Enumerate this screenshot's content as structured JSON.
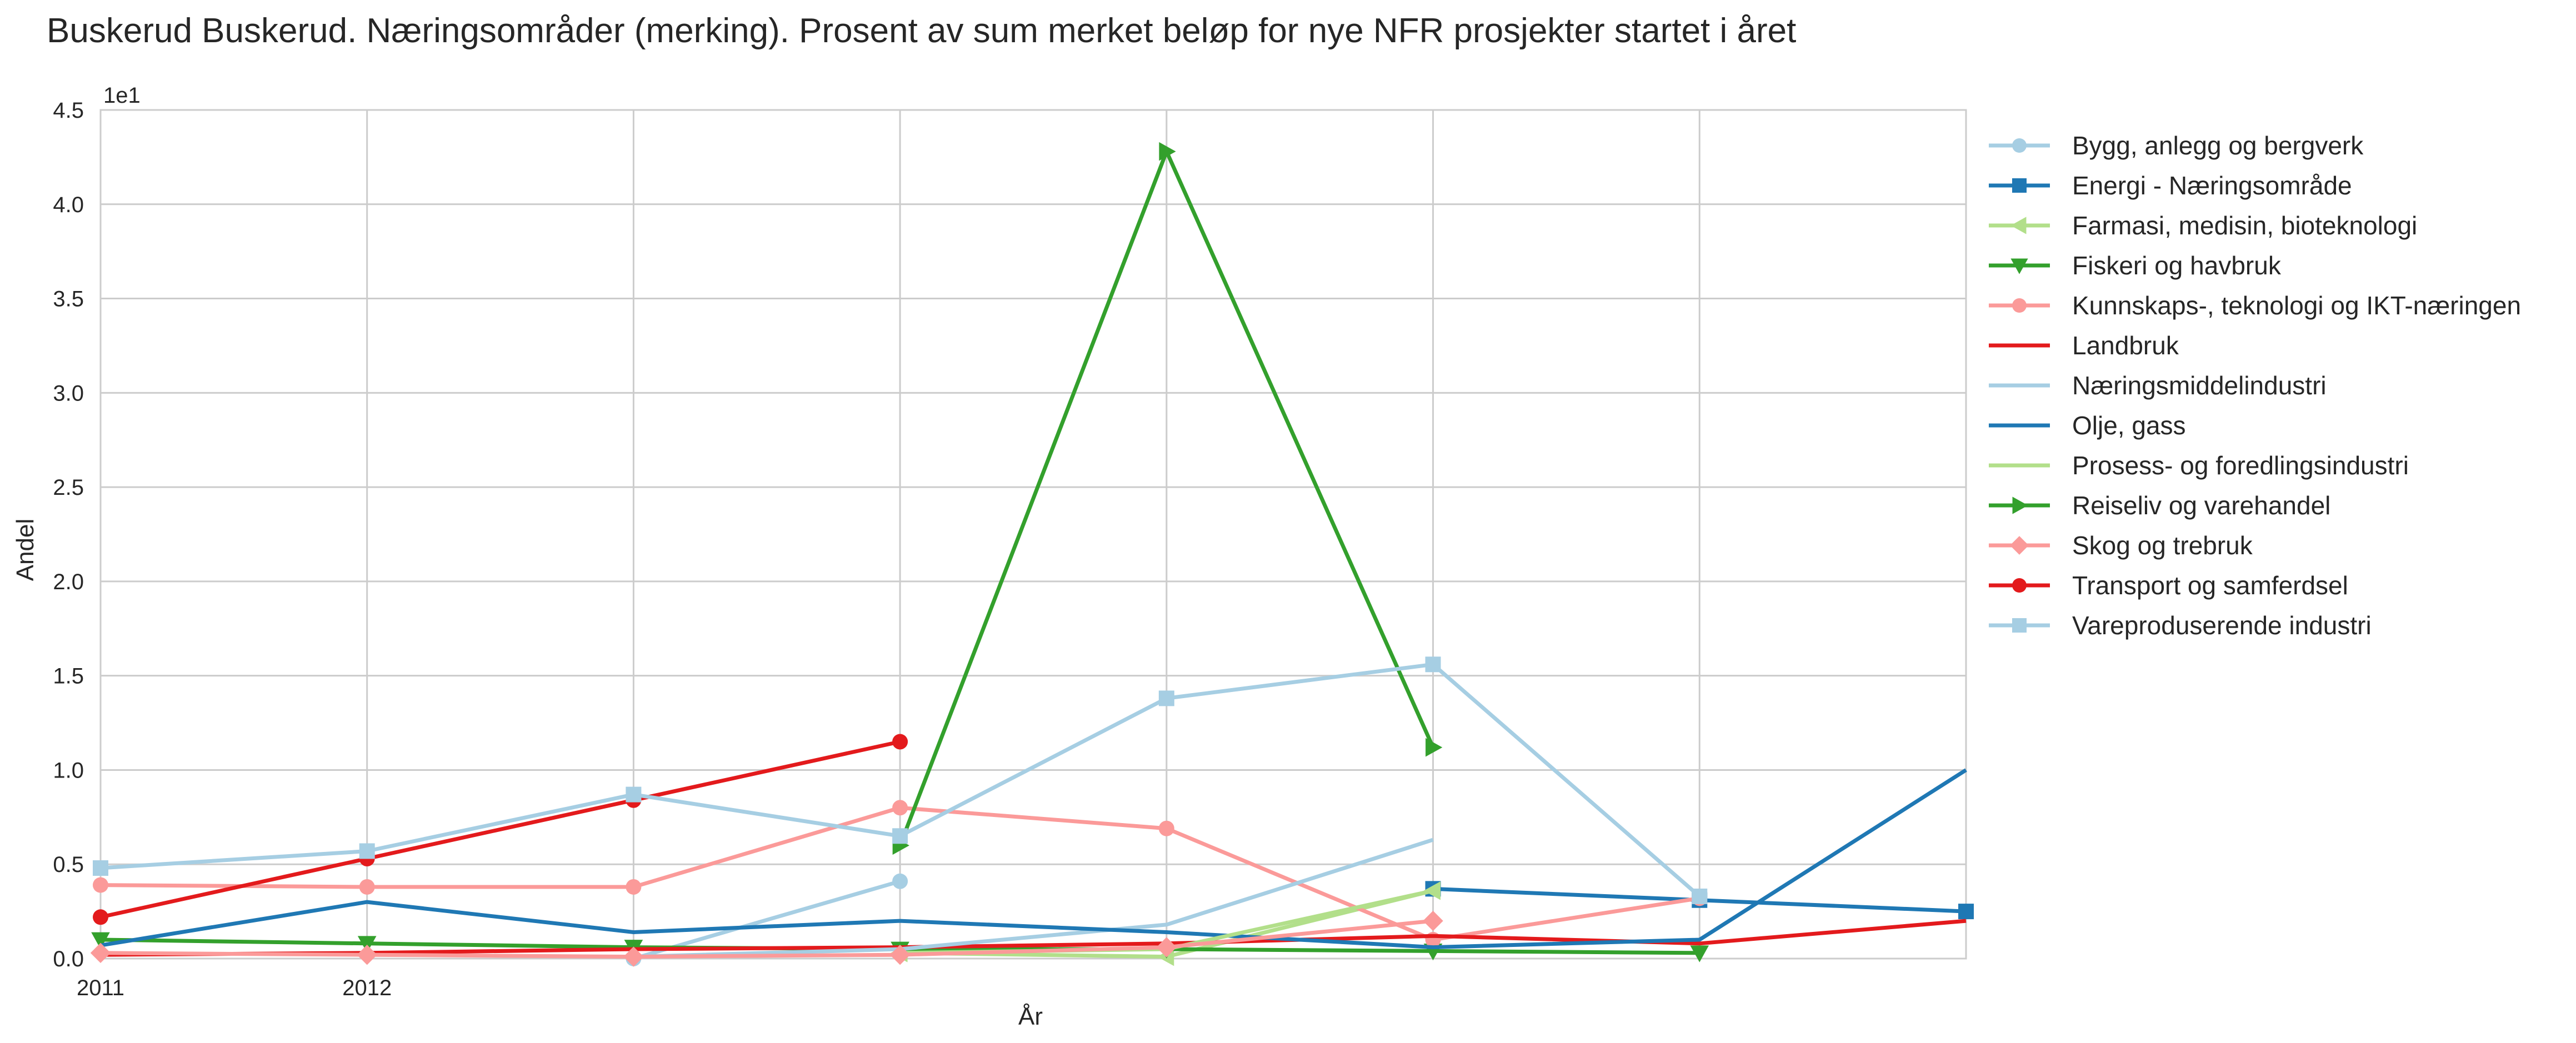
{
  "chart_data": {
    "type": "line",
    "title": "Buskerud Buskerud. Næringsområder (merking). Prosent av sum merket beløp for nye NFR prosjekter startet i året",
    "xlabel": "År",
    "ylabel": "Andel",
    "y_scale_label": "1e1",
    "xlim": [
      2011,
      2018
    ],
    "ylim": [
      0,
      4.5
    ],
    "x_tick_labels": [
      "2011",
      "2012"
    ],
    "y_ticks": [
      "0.0",
      "0.5",
      "1.0",
      "1.5",
      "2.0",
      "2.5",
      "3.0",
      "3.5",
      "4.0",
      "4.5"
    ],
    "grid": true,
    "legend_position": "right, outside plot",
    "series": [
      {
        "name": "Bygg, anlegg og bergverk",
        "color": "#a6cee3",
        "marker": "circle",
        "points": [
          [
            2013,
            0.0
          ],
          [
            2014,
            0.41
          ]
        ]
      },
      {
        "name": "Energi - Næringsområde",
        "color": "#1f78b4",
        "marker": "square",
        "points": [
          [
            2016,
            0.37
          ],
          [
            2017,
            0.31
          ],
          [
            2018,
            0.25
          ]
        ]
      },
      {
        "name": "Farmasi, medisin, bioteknologi",
        "color": "#b2df8a",
        "marker": "triangle-left",
        "points": [
          [
            2014,
            0.03
          ],
          [
            2015,
            0.01
          ],
          [
            2016,
            0.36
          ]
        ]
      },
      {
        "name": "Fiskeri og havbruk",
        "color": "#33a02c",
        "marker": "triangle-down",
        "points": [
          [
            2011,
            0.1
          ],
          [
            2012,
            0.08
          ],
          [
            2013,
            0.06
          ],
          [
            2014,
            0.05
          ],
          [
            2015,
            0.05
          ],
          [
            2016,
            0.04
          ],
          [
            2017,
            0.03
          ]
        ]
      },
      {
        "name": "Kunnskaps-, teknologi og IKT-næringen",
        "color": "#fb9a99",
        "marker": "circle",
        "points": [
          [
            2011,
            0.39
          ],
          [
            2012,
            0.38
          ],
          [
            2013,
            0.38
          ],
          [
            2014,
            0.8
          ],
          [
            2015,
            0.69
          ],
          [
            2016,
            0.1
          ],
          [
            2017,
            0.32
          ]
        ]
      },
      {
        "name": "Landbruk",
        "color": "#e31a1c",
        "marker": "none",
        "points": [
          [
            2011,
            0.02
          ],
          [
            2012,
            0.03
          ],
          [
            2013,
            0.05
          ],
          [
            2014,
            0.06
          ],
          [
            2015,
            0.08
          ],
          [
            2016,
            0.12
          ],
          [
            2017,
            0.08
          ],
          [
            2018,
            0.2
          ]
        ]
      },
      {
        "name": "Næringsmiddelindustri",
        "color": "#a6cee3",
        "marker": "none",
        "points": [
          [
            2013,
            0.01
          ],
          [
            2014,
            0.05
          ],
          [
            2015,
            0.18
          ],
          [
            2016,
            0.63
          ]
        ]
      },
      {
        "name": "Olje, gass",
        "color": "#1f78b4",
        "marker": "none",
        "points": [
          [
            2011,
            0.07
          ],
          [
            2012,
            0.3
          ],
          [
            2013,
            0.14
          ],
          [
            2014,
            0.2
          ],
          [
            2015,
            0.14
          ],
          [
            2016,
            0.06
          ],
          [
            2017,
            0.1
          ],
          [
            2018,
            1.0
          ]
        ]
      },
      {
        "name": "Prosess- og foredlingsindustri",
        "color": "#b2df8a",
        "marker": "none",
        "points": [
          [
            2014,
            0.03
          ],
          [
            2015,
            0.05
          ],
          [
            2016,
            0.36
          ]
        ]
      },
      {
        "name": "Reiseliv og varehandel",
        "color": "#33a02c",
        "marker": "triangle-right",
        "points": [
          [
            2014,
            0.6
          ],
          [
            2015,
            4.28
          ],
          [
            2016,
            1.12
          ]
        ]
      },
      {
        "name": "Skog og trebruk",
        "color": "#fb9a99",
        "marker": "diamond",
        "points": [
          [
            2011,
            0.03
          ],
          [
            2012,
            0.02
          ],
          [
            2013,
            0.01
          ],
          [
            2014,
            0.02
          ],
          [
            2015,
            0.06
          ],
          [
            2016,
            0.2
          ]
        ]
      },
      {
        "name": "Transport og samferdsel",
        "color": "#e31a1c",
        "marker": "circle",
        "points": [
          [
            2011,
            0.22
          ],
          [
            2012,
            0.53
          ],
          [
            2013,
            0.84
          ],
          [
            2014,
            1.15
          ]
        ]
      },
      {
        "name": "Vareproduserende industri",
        "color": "#a6cee3",
        "marker": "square",
        "points": [
          [
            2011,
            0.48
          ],
          [
            2012,
            0.57
          ],
          [
            2013,
            0.87
          ],
          [
            2014,
            0.65
          ],
          [
            2015,
            1.38
          ],
          [
            2016,
            1.56
          ],
          [
            2017,
            0.33
          ]
        ]
      }
    ]
  }
}
